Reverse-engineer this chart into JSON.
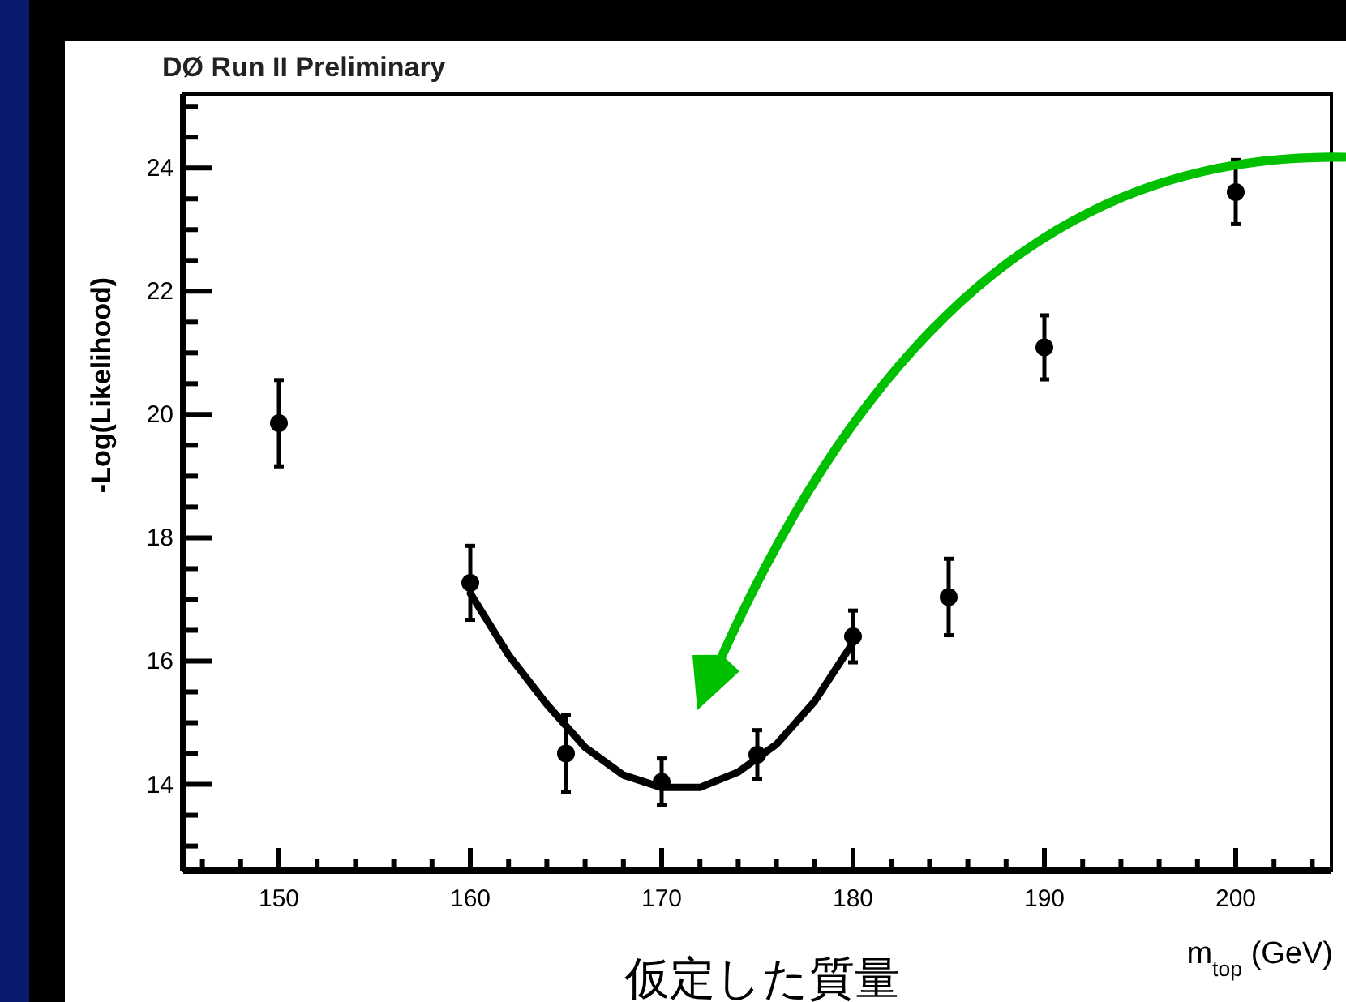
{
  "chart_data": {
    "type": "scatter",
    "title": "DØ Run II Preliminary",
    "xlabel": "m$_{top}$ (GeV)",
    "ylabel": "-Log(Likelihood)",
    "annotations": [
      "仮定した質量"
    ],
    "xlim": [
      145,
      205
    ],
    "ylim": [
      12.6,
      25.2
    ],
    "xticks": [
      150,
      160,
      170,
      180,
      190,
      200,
      {
        "value": 146,
        "label": null
      },
      {
        "value": 148,
        "label": null
      },
      {
        "value": 152,
        "label": null
      },
      {
        "value": 154,
        "label": null
      },
      {
        "value": 156,
        "label": null
      },
      {
        "value": 158,
        "label": null
      },
      {
        "value": 162,
        "label": null
      },
      {
        "value": 164,
        "label": null
      },
      {
        "value": 166,
        "label": null
      },
      {
        "value": 168,
        "label": null
      },
      {
        "value": 172,
        "label": null
      },
      {
        "value": 174,
        "label": null
      },
      {
        "value": 176,
        "label": null
      },
      {
        "value": 178,
        "label": null
      },
      {
        "value": 182,
        "label": null
      },
      {
        "value": 184,
        "label": null
      },
      {
        "value": 186,
        "label": null
      },
      {
        "value": 188,
        "label": null
      },
      {
        "value": 192,
        "label": null
      },
      {
        "value": 194,
        "label": null
      },
      {
        "value": 196,
        "label": null
      },
      {
        "value": 198,
        "label": null
      },
      {
        "value": 202,
        "label": null
      },
      {
        "value": 204,
        "label": null
      }
    ],
    "yticks": [
      14,
      16,
      18,
      20,
      22,
      24,
      {
        "value": 13,
        "label": null
      },
      {
        "value": 13.5,
        "label": null
      },
      {
        "value": 14.5,
        "label": null
      },
      {
        "value": 15,
        "label": null
      },
      {
        "value": 15.5,
        "label": null
      },
      {
        "value": 16.5,
        "label": null
      },
      {
        "value": 17,
        "label": null
      },
      {
        "value": 17.5,
        "label": null
      },
      {
        "value": 18.5,
        "label": null
      },
      {
        "value": 19,
        "label": null
      },
      {
        "value": 19.5,
        "label": null
      },
      {
        "value": 20.5,
        "label": null
      },
      {
        "value": 21,
        "label": null
      },
      {
        "value": 21.5,
        "label": null
      },
      {
        "value": 22.5,
        "label": null
      },
      {
        "value": 23,
        "label": null
      },
      {
        "value": 23.5,
        "label": null
      },
      {
        "value": 24.5,
        "label": null
      },
      {
        "value": 25,
        "label": null
      }
    ],
    "marker": "circle",
    "series": [
      {
        "type": "scatter",
        "color": "#000000",
        "x": [
          150,
          160,
          165,
          170,
          175,
          180,
          185,
          190,
          200
        ],
        "values": [
          19.86,
          17.27,
          14.5,
          14.04,
          14.48,
          16.4,
          17.04,
          21.09,
          23.61
        ],
        "errors": [
          0.7,
          0.6,
          0.62,
          0.38,
          0.4,
          0.42,
          0.62,
          0.52,
          0.52
        ]
      },
      {
        "type": "line",
        "marker": "none",
        "color": "#000000",
        "x": [
          160,
          162,
          164,
          166,
          168,
          170,
          172,
          174,
          176,
          178,
          180
        ],
        "values": [
          17.1,
          16.1,
          15.3,
          14.6,
          14.15,
          13.95,
          13.95,
          14.2,
          14.65,
          15.35,
          16.3
        ]
      }
    ]
  }
}
